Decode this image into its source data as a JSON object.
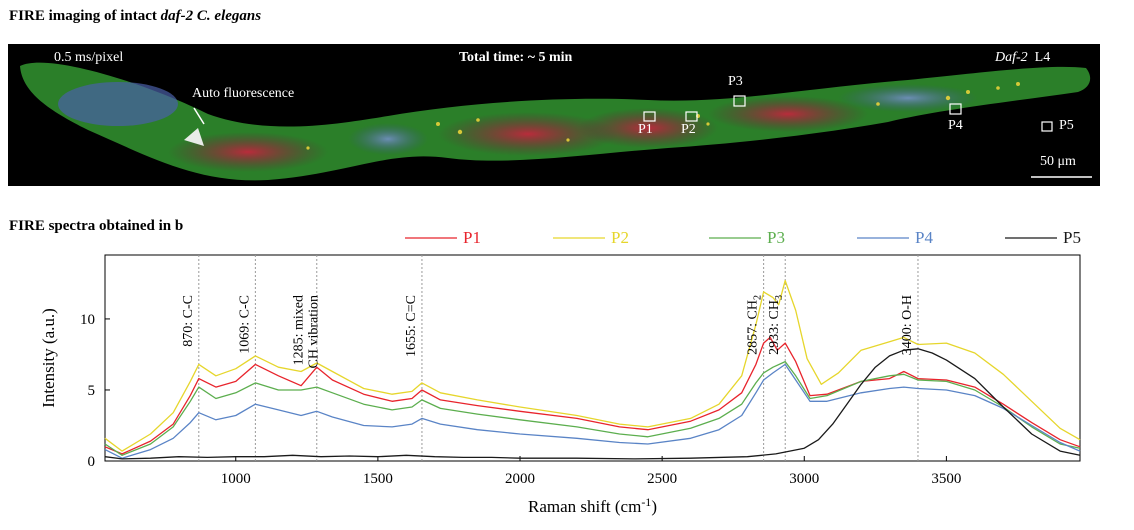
{
  "panel_a": {
    "title_prefix": "FIRE imaging of intact ",
    "title_italic": "daf-2 C. elegans",
    "scan_rate": "0.5 ms/pixel",
    "total_time": "Total time: ~ 5 min",
    "strain_italic": "Daf-2",
    "stage": "L4",
    "autofluorescence_label": "Auto fluorescence",
    "scale_bar_label": "50 μm",
    "points": [
      "P1",
      "P2",
      "P3",
      "P4",
      "P5"
    ],
    "colors": {
      "background": "#000000",
      "green": "#3fae3a",
      "red": "#b0263a",
      "yellow": "#e8d23a",
      "blue": "#6a8ccf"
    }
  },
  "chart_data": {
    "type": "line",
    "title": "FIRE spectra obtained in b",
    "xlabel": "Raman shift (cm",
    "xlabel_sup": "-1",
    "xlabel_suffix": ")",
    "ylabel": "Intensity (a.u.)",
    "xlim": [
      540,
      3970
    ],
    "ylim": [
      0,
      14.5
    ],
    "xticks": [
      1000,
      1500,
      2000,
      2500,
      3000,
      3500
    ],
    "yticks": [
      0,
      5,
      10
    ],
    "grid": false,
    "legend_position": "top",
    "annotations": [
      {
        "x": 870,
        "lines": [
          "870: C-C"
        ]
      },
      {
        "x": 1069,
        "lines": [
          "1069: C-C"
        ]
      },
      {
        "x": 1285,
        "lines": [
          "1285: mixed",
          "CH vibration"
        ]
      },
      {
        "x": 1655,
        "lines": [
          "1655: C=C"
        ]
      },
      {
        "x": 2857,
        "lines": [
          "2857: CH"
        ],
        "sub": "2"
      },
      {
        "x": 2933,
        "lines": [
          "2933: CH"
        ],
        "sub": "3"
      },
      {
        "x": 3400,
        "lines": [
          "3400: O-H"
        ]
      }
    ],
    "series": [
      {
        "name": "P1",
        "color": "#e8242c",
        "points": [
          [
            540,
            1.0
          ],
          [
            600,
            0.5
          ],
          [
            700,
            1.4
          ],
          [
            780,
            2.6
          ],
          [
            840,
            4.6
          ],
          [
            870,
            5.8
          ],
          [
            930,
            5.2
          ],
          [
            1000,
            5.6
          ],
          [
            1069,
            6.8
          ],
          [
            1150,
            6.0
          ],
          [
            1230,
            5.3
          ],
          [
            1285,
            6.6
          ],
          [
            1340,
            5.7
          ],
          [
            1450,
            4.7
          ],
          [
            1550,
            4.2
          ],
          [
            1620,
            4.4
          ],
          [
            1655,
            5.0
          ],
          [
            1720,
            4.3
          ],
          [
            1850,
            3.9
          ],
          [
            2000,
            3.5
          ],
          [
            2200,
            3.0
          ],
          [
            2350,
            2.4
          ],
          [
            2450,
            2.2
          ],
          [
            2600,
            2.8
          ],
          [
            2700,
            3.6
          ],
          [
            2780,
            4.8
          ],
          [
            2830,
            6.8
          ],
          [
            2857,
            8.3
          ],
          [
            2880,
            8.7
          ],
          [
            2905,
            7.8
          ],
          [
            2933,
            8.3
          ],
          [
            2970,
            7.0
          ],
          [
            3020,
            4.6
          ],
          [
            3080,
            4.7
          ],
          [
            3200,
            5.6
          ],
          [
            3300,
            5.8
          ],
          [
            3350,
            6.3
          ],
          [
            3400,
            5.8
          ],
          [
            3500,
            5.7
          ],
          [
            3600,
            5.2
          ],
          [
            3700,
            4.0
          ],
          [
            3800,
            2.7
          ],
          [
            3900,
            1.5
          ],
          [
            3970,
            1.0
          ]
        ]
      },
      {
        "name": "P2",
        "color": "#e6d62c",
        "points": [
          [
            540,
            1.6
          ],
          [
            600,
            0.7
          ],
          [
            700,
            1.9
          ],
          [
            780,
            3.4
          ],
          [
            840,
            5.6
          ],
          [
            870,
            6.8
          ],
          [
            930,
            6.0
          ],
          [
            1000,
            6.5
          ],
          [
            1069,
            7.4
          ],
          [
            1150,
            6.6
          ],
          [
            1230,
            6.3
          ],
          [
            1285,
            6.9
          ],
          [
            1340,
            6.3
          ],
          [
            1450,
            5.1
          ],
          [
            1550,
            4.7
          ],
          [
            1620,
            4.9
          ],
          [
            1655,
            5.5
          ],
          [
            1720,
            4.8
          ],
          [
            1850,
            4.3
          ],
          [
            2000,
            3.8
          ],
          [
            2200,
            3.2
          ],
          [
            2350,
            2.6
          ],
          [
            2450,
            2.4
          ],
          [
            2600,
            3.0
          ],
          [
            2700,
            4.0
          ],
          [
            2780,
            6.0
          ],
          [
            2830,
            9.6
          ],
          [
            2857,
            11.9
          ],
          [
            2890,
            11.5
          ],
          [
            2910,
            11.0
          ],
          [
            2933,
            12.7
          ],
          [
            2970,
            10.6
          ],
          [
            3010,
            7.2
          ],
          [
            3060,
            5.4
          ],
          [
            3120,
            6.2
          ],
          [
            3200,
            7.8
          ],
          [
            3300,
            8.4
          ],
          [
            3350,
            8.7
          ],
          [
            3400,
            8.2
          ],
          [
            3500,
            8.3
          ],
          [
            3600,
            7.6
          ],
          [
            3700,
            6.1
          ],
          [
            3800,
            4.2
          ],
          [
            3900,
            2.3
          ],
          [
            3970,
            1.5
          ]
        ]
      },
      {
        "name": "P3",
        "color": "#5cae4e",
        "points": [
          [
            540,
            1.2
          ],
          [
            600,
            0.4
          ],
          [
            700,
            1.2
          ],
          [
            780,
            2.4
          ],
          [
            840,
            4.2
          ],
          [
            870,
            5.2
          ],
          [
            930,
            4.4
          ],
          [
            1000,
            4.8
          ],
          [
            1069,
            5.5
          ],
          [
            1150,
            5.0
          ],
          [
            1230,
            5.0
          ],
          [
            1285,
            5.2
          ],
          [
            1340,
            4.8
          ],
          [
            1450,
            4.0
          ],
          [
            1550,
            3.6
          ],
          [
            1620,
            3.8
          ],
          [
            1655,
            4.3
          ],
          [
            1720,
            3.7
          ],
          [
            1850,
            3.3
          ],
          [
            2000,
            2.9
          ],
          [
            2200,
            2.4
          ],
          [
            2350,
            1.9
          ],
          [
            2450,
            1.7
          ],
          [
            2600,
            2.3
          ],
          [
            2700,
            3.0
          ],
          [
            2780,
            4.0
          ],
          [
            2830,
            5.5
          ],
          [
            2857,
            6.2
          ],
          [
            2890,
            6.6
          ],
          [
            2933,
            7.0
          ],
          [
            2970,
            6.0
          ],
          [
            3020,
            4.4
          ],
          [
            3080,
            4.6
          ],
          [
            3200,
            5.6
          ],
          [
            3300,
            6.0
          ],
          [
            3350,
            6.1
          ],
          [
            3400,
            5.7
          ],
          [
            3500,
            5.6
          ],
          [
            3600,
            5.0
          ],
          [
            3700,
            3.8
          ],
          [
            3800,
            2.4
          ],
          [
            3900,
            1.2
          ],
          [
            3970,
            0.9
          ]
        ]
      },
      {
        "name": "P4",
        "color": "#5a84c6",
        "points": [
          [
            540,
            0.8
          ],
          [
            600,
            0.2
          ],
          [
            700,
            0.8
          ],
          [
            780,
            1.6
          ],
          [
            840,
            2.7
          ],
          [
            870,
            3.4
          ],
          [
            930,
            2.9
          ],
          [
            1000,
            3.2
          ],
          [
            1069,
            4.0
          ],
          [
            1150,
            3.6
          ],
          [
            1230,
            3.2
          ],
          [
            1285,
            3.5
          ],
          [
            1340,
            3.1
          ],
          [
            1450,
            2.5
          ],
          [
            1550,
            2.4
          ],
          [
            1620,
            2.6
          ],
          [
            1655,
            3.0
          ],
          [
            1720,
            2.6
          ],
          [
            1850,
            2.2
          ],
          [
            2000,
            1.9
          ],
          [
            2200,
            1.6
          ],
          [
            2350,
            1.3
          ],
          [
            2450,
            1.2
          ],
          [
            2600,
            1.6
          ],
          [
            2700,
            2.2
          ],
          [
            2780,
            3.2
          ],
          [
            2830,
            4.8
          ],
          [
            2857,
            5.7
          ],
          [
            2890,
            6.2
          ],
          [
            2933,
            6.8
          ],
          [
            2970,
            5.7
          ],
          [
            3020,
            4.2
          ],
          [
            3080,
            4.2
          ],
          [
            3200,
            4.8
          ],
          [
            3300,
            5.1
          ],
          [
            3350,
            5.2
          ],
          [
            3400,
            5.1
          ],
          [
            3500,
            5.0
          ],
          [
            3600,
            4.6
          ],
          [
            3700,
            3.7
          ],
          [
            3800,
            2.5
          ],
          [
            3900,
            1.3
          ],
          [
            3970,
            0.7
          ]
        ]
      },
      {
        "name": "P5",
        "color": "#1a1a1a",
        "points": [
          [
            540,
            0.3
          ],
          [
            600,
            0.15
          ],
          [
            700,
            0.2
          ],
          [
            800,
            0.3
          ],
          [
            900,
            0.25
          ],
          [
            1000,
            0.3
          ],
          [
            1100,
            0.3
          ],
          [
            1200,
            0.4
          ],
          [
            1300,
            0.3
          ],
          [
            1400,
            0.35
          ],
          [
            1500,
            0.3
          ],
          [
            1600,
            0.4
          ],
          [
            1700,
            0.3
          ],
          [
            1800,
            0.25
          ],
          [
            1900,
            0.25
          ],
          [
            2000,
            0.2
          ],
          [
            2200,
            0.2
          ],
          [
            2400,
            0.15
          ],
          [
            2600,
            0.2
          ],
          [
            2800,
            0.3
          ],
          [
            2900,
            0.5
          ],
          [
            3000,
            0.9
          ],
          [
            3050,
            1.5
          ],
          [
            3100,
            2.6
          ],
          [
            3150,
            4.0
          ],
          [
            3200,
            5.4
          ],
          [
            3250,
            6.6
          ],
          [
            3300,
            7.4
          ],
          [
            3350,
            7.8
          ],
          [
            3400,
            7.9
          ],
          [
            3450,
            7.6
          ],
          [
            3500,
            7.1
          ],
          [
            3600,
            5.8
          ],
          [
            3700,
            3.8
          ],
          [
            3800,
            1.9
          ],
          [
            3900,
            0.7
          ],
          [
            3970,
            0.4
          ]
        ]
      }
    ]
  }
}
